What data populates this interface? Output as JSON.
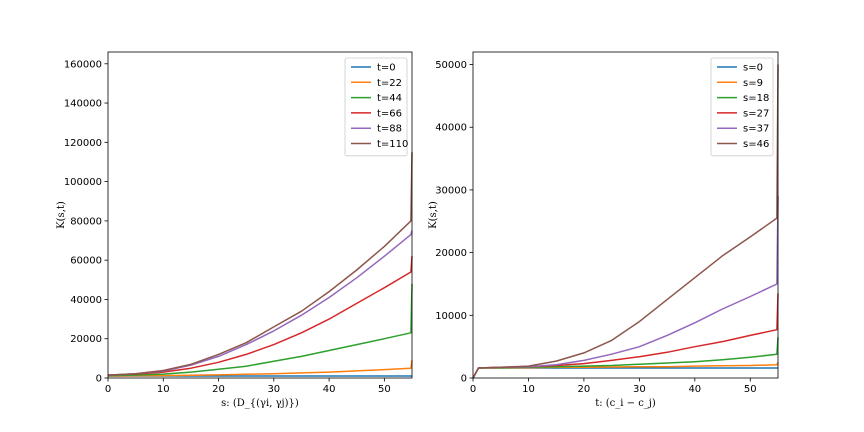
{
  "chart_data": [
    {
      "type": "line",
      "xlabel": "s: (D_{(γi, γj)})",
      "ylabel": "K(s,t)",
      "xlim": [
        0,
        55
      ],
      "ylim": [
        0,
        166000
      ],
      "xticks": [
        0,
        10,
        20,
        30,
        40,
        50
      ],
      "yticks": [
        0,
        20000,
        40000,
        60000,
        80000,
        100000,
        120000,
        140000,
        160000
      ],
      "legend_position": "top-right",
      "grid": false,
      "x": [
        0,
        5,
        10,
        15,
        20,
        25,
        30,
        35,
        40,
        45,
        50,
        54.8,
        55
      ],
      "series": [
        {
          "name": "t=0",
          "color": "#1f77b4",
          "values": [
            1000,
            1000,
            1000,
            1000,
            1000,
            1000,
            1000,
            1000,
            1000,
            1000,
            1000,
            1000,
            1000
          ]
        },
        {
          "name": "t=22",
          "color": "#ff7f0e",
          "values": [
            1000,
            1100,
            1200,
            1400,
            1600,
            1900,
            2200,
            2600,
            3000,
            3600,
            4300,
            5000,
            9000
          ]
        },
        {
          "name": "t=44",
          "color": "#2ca02c",
          "values": [
            1200,
            1500,
            2000,
            3000,
            4500,
            6000,
            8500,
            11000,
            14000,
            17000,
            20000,
            23000,
            48000
          ]
        },
        {
          "name": "t=66",
          "color": "#d62728",
          "values": [
            1500,
            2000,
            3000,
            5000,
            8000,
            12000,
            17000,
            23000,
            30000,
            38000,
            46000,
            54000,
            62000
          ]
        },
        {
          "name": "t=88",
          "color": "#9467bd",
          "values": [
            1500,
            2200,
            3500,
            6500,
            11000,
            17000,
            24000,
            32000,
            41000,
            51000,
            62000,
            73000,
            75000
          ]
        },
        {
          "name": "t=110",
          "color": "#8c564b",
          "values": [
            1500,
            2200,
            3800,
            7000,
            12000,
            18000,
            26000,
            34000,
            44000,
            55000,
            67000,
            80000,
            115000
          ]
        }
      ]
    },
    {
      "type": "line",
      "xlabel": "t: (c_i − c_j)",
      "ylabel": "K(s,t)",
      "xlim": [
        0,
        55
      ],
      "ylim": [
        0,
        52000
      ],
      "xticks": [
        0,
        10,
        20,
        30,
        40,
        50
      ],
      "yticks": [
        0,
        10000,
        20000,
        30000,
        40000,
        50000
      ],
      "legend_position": "top-right",
      "grid": false,
      "x": [
        0,
        1,
        5,
        10,
        15,
        20,
        25,
        30,
        35,
        40,
        45,
        50,
        54.8,
        55
      ],
      "series": [
        {
          "name": "s=0",
          "color": "#1f77b4",
          "values": [
            0,
            1600,
            1600,
            1600,
            1600,
            1600,
            1600,
            1600,
            1600,
            1600,
            1600,
            1600,
            1600,
            1600
          ]
        },
        {
          "name": "s=9",
          "color": "#ff7f0e",
          "values": [
            0,
            1600,
            1600,
            1650,
            1700,
            1700,
            1750,
            1800,
            1800,
            1900,
            1950,
            2000,
            2100,
            2500
          ]
        },
        {
          "name": "s=18",
          "color": "#2ca02c",
          "values": [
            0,
            1600,
            1650,
            1700,
            1800,
            1900,
            2000,
            2200,
            2400,
            2600,
            2900,
            3300,
            3800,
            6500
          ]
        },
        {
          "name": "s=27",
          "color": "#d62728",
          "values": [
            0,
            1600,
            1700,
            1800,
            2000,
            2300,
            2800,
            3400,
            4100,
            5000,
            5800,
            6800,
            7700,
            13500
          ]
        },
        {
          "name": "s=37",
          "color": "#9467bd",
          "values": [
            0,
            1600,
            1700,
            1800,
            2100,
            2800,
            3800,
            5000,
            6800,
            8800,
            11000,
            13000,
            15000,
            29000
          ]
        },
        {
          "name": "s=46",
          "color": "#8c564b",
          "values": [
            0,
            1600,
            1700,
            1900,
            2700,
            4000,
            6000,
            9000,
            12500,
            16000,
            19500,
            22500,
            25500,
            50000
          ]
        }
      ]
    }
  ]
}
